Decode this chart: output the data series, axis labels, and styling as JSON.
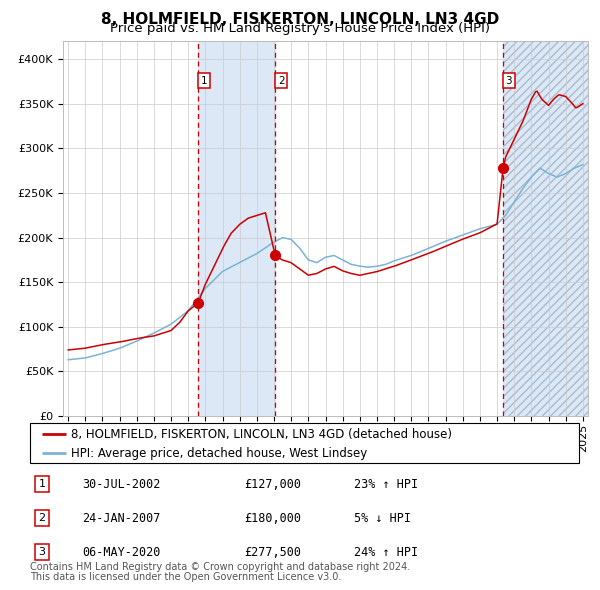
{
  "title": "8, HOLMFIELD, FISKERTON, LINCOLN, LN3 4GD",
  "subtitle": "Price paid vs. HM Land Registry's House Price Index (HPI)",
  "legend_line1": "8, HOLMFIELD, FISKERTON, LINCOLN, LN3 4GD (detached house)",
  "legend_line2": "HPI: Average price, detached house, West Lindsey",
  "footer1": "Contains HM Land Registry data © Crown copyright and database right 2024.",
  "footer2": "This data is licensed under the Open Government Licence v3.0.",
  "transactions": [
    {
      "num": 1,
      "date": "30-JUL-2002",
      "price": "£127,000",
      "change": "23% ↑ HPI",
      "date_dec": 2002.58
    },
    {
      "num": 2,
      "date": "24-JAN-2007",
      "price": "£180,000",
      "change": "5% ↓ HPI",
      "date_dec": 2007.07
    },
    {
      "num": 3,
      "date": "06-MAY-2020",
      "price": "£277,500",
      "change": "24% ↑ HPI",
      "date_dec": 2020.35
    }
  ],
  "hpi_color": "#7ab3d4",
  "price_color": "#cc0000",
  "dot_color": "#cc0000",
  "dashed_color": "#cc0000",
  "shaded_color": "#dce8f5",
  "grid_color": "#cccccc",
  "plot_bg": "#ffffff",
  "ylim": [
    0,
    420000
  ],
  "yticks": [
    0,
    50000,
    100000,
    150000,
    200000,
    250000,
    300000,
    350000,
    400000
  ],
  "xlim_start": 1994.7,
  "xlim_end": 2025.3,
  "title_fontsize": 11,
  "subtitle_fontsize": 9.5,
  "tick_fontsize": 8,
  "legend_fontsize": 8.5,
  "footer_fontsize": 7
}
